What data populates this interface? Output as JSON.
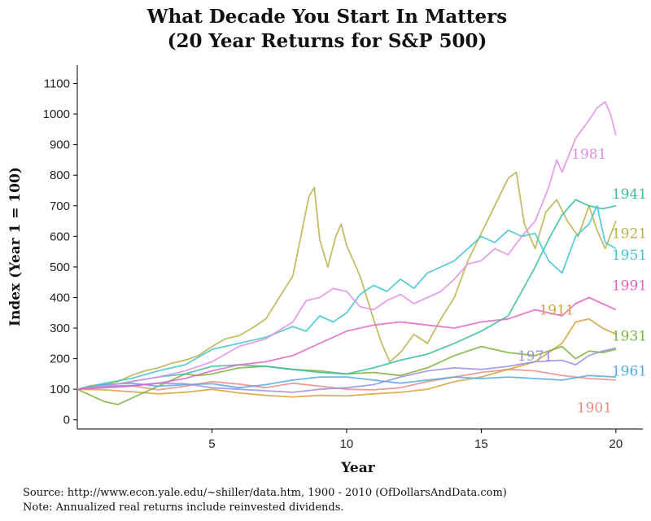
{
  "chart_data": {
    "type": "line",
    "title": "What Decade You Start In Matters",
    "subtitle": "(20 Year Returns for S&P 500)",
    "xlabel": "Year",
    "ylabel": "Index (Year 1 = 100)",
    "xlim": [
      0,
      21
    ],
    "ylim": [
      -30,
      1160
    ],
    "xticks": [
      5,
      10,
      15,
      20
    ],
    "yticks": [
      0,
      100,
      200,
      300,
      400,
      500,
      600,
      700,
      800,
      900,
      1000,
      1100
    ],
    "grid": false,
    "legend": "direct-labels",
    "series": [
      {
        "name": "1901",
        "color": "#e98c86",
        "label_at": [
          19.2,
          40
        ],
        "points": [
          [
            0,
            100
          ],
          [
            1,
            107
          ],
          [
            2,
            112
          ],
          [
            3,
            98
          ],
          [
            4,
            110
          ],
          [
            5,
            125
          ],
          [
            6,
            117
          ],
          [
            7,
            105
          ],
          [
            8,
            120
          ],
          [
            9,
            110
          ],
          [
            10,
            100
          ],
          [
            11,
            98
          ],
          [
            12,
            105
          ],
          [
            13,
            125
          ],
          [
            14,
            140
          ],
          [
            15,
            155
          ],
          [
            16,
            165
          ],
          [
            17,
            160
          ],
          [
            18,
            145
          ],
          [
            19,
            135
          ],
          [
            20,
            130
          ]
        ]
      },
      {
        "name": "1911",
        "color": "#d8a23c",
        "label_at": [
          17.8,
          360
        ],
        "points": [
          [
            0,
            100
          ],
          [
            1,
            98
          ],
          [
            2,
            92
          ],
          [
            3,
            85
          ],
          [
            4,
            90
          ],
          [
            5,
            100
          ],
          [
            6,
            88
          ],
          [
            7,
            80
          ],
          [
            8,
            75
          ],
          [
            9,
            80
          ],
          [
            10,
            78
          ],
          [
            11,
            85
          ],
          [
            12,
            90
          ],
          [
            13,
            100
          ],
          [
            14,
            125
          ],
          [
            15,
            140
          ],
          [
            16,
            165
          ],
          [
            17,
            190
          ],
          [
            18,
            250
          ],
          [
            18.5,
            320
          ],
          [
            19,
            330
          ],
          [
            19.5,
            300
          ],
          [
            20,
            280
          ]
        ]
      },
      {
        "name": "1921",
        "color": "#b9b24a",
        "label_at": [
          20.5,
          610
        ],
        "points": [
          [
            0,
            100
          ],
          [
            0.5,
            112
          ],
          [
            1,
            115
          ],
          [
            1.5,
            125
          ],
          [
            2,
            145
          ],
          [
            2.5,
            160
          ],
          [
            3,
            170
          ],
          [
            3.5,
            185
          ],
          [
            4,
            195
          ],
          [
            4.5,
            210
          ],
          [
            5,
            240
          ],
          [
            5.5,
            265
          ],
          [
            6,
            275
          ],
          [
            6.5,
            300
          ],
          [
            7,
            330
          ],
          [
            7.5,
            400
          ],
          [
            8,
            470
          ],
          [
            8.3,
            600
          ],
          [
            8.6,
            730
          ],
          [
            8.8,
            760
          ],
          [
            9,
            590
          ],
          [
            9.3,
            500
          ],
          [
            9.6,
            600
          ],
          [
            9.8,
            640
          ],
          [
            10,
            570
          ],
          [
            10.5,
            470
          ],
          [
            11,
            330
          ],
          [
            11.3,
            250
          ],
          [
            11.6,
            190
          ],
          [
            12,
            220
          ],
          [
            12.5,
            280
          ],
          [
            13,
            250
          ],
          [
            13.5,
            330
          ],
          [
            14,
            400
          ],
          [
            14.5,
            520
          ],
          [
            15,
            610
          ],
          [
            15.5,
            700
          ],
          [
            16,
            790
          ],
          [
            16.3,
            810
          ],
          [
            16.6,
            640
          ],
          [
            17,
            560
          ],
          [
            17.4,
            680
          ],
          [
            17.8,
            720
          ],
          [
            18.2,
            650
          ],
          [
            18.6,
            600
          ],
          [
            19,
            700
          ],
          [
            19.3,
            620
          ],
          [
            19.6,
            560
          ],
          [
            20,
            650
          ]
        ]
      },
      {
        "name": "1931",
        "color": "#7bb33a",
        "label_at": [
          20.5,
          275
        ],
        "points": [
          [
            0,
            100
          ],
          [
            0.5,
            80
          ],
          [
            1,
            60
          ],
          [
            1.5,
            50
          ],
          [
            2,
            70
          ],
          [
            2.5,
            90
          ],
          [
            3,
            110
          ],
          [
            3.5,
            130
          ],
          [
            4,
            150
          ],
          [
            4.5,
            145
          ],
          [
            5,
            150
          ],
          [
            6,
            170
          ],
          [
            7,
            175
          ],
          [
            8,
            165
          ],
          [
            9,
            160
          ],
          [
            10,
            150
          ],
          [
            11,
            155
          ],
          [
            12,
            145
          ],
          [
            13,
            170
          ],
          [
            14,
            210
          ],
          [
            15,
            240
          ],
          [
            16,
            220
          ],
          [
            17,
            210
          ],
          [
            18,
            240
          ],
          [
            18.5,
            200
          ],
          [
            19,
            225
          ],
          [
            19.5,
            220
          ],
          [
            20,
            230
          ]
        ]
      },
      {
        "name": "1941",
        "color": "#37c0a0",
        "label_at": [
          20.5,
          740
        ],
        "points": [
          [
            0,
            100
          ],
          [
            1,
            110
          ],
          [
            2,
            125
          ],
          [
            3,
            140
          ],
          [
            4,
            150
          ],
          [
            5,
            175
          ],
          [
            6,
            180
          ],
          [
            7,
            175
          ],
          [
            8,
            165
          ],
          [
            9,
            155
          ],
          [
            10,
            150
          ],
          [
            11,
            170
          ],
          [
            12,
            195
          ],
          [
            13,
            215
          ],
          [
            14,
            250
          ],
          [
            15,
            290
          ],
          [
            16,
            340
          ],
          [
            16.5,
            420
          ],
          [
            17,
            500
          ],
          [
            17.5,
            590
          ],
          [
            18,
            670
          ],
          [
            18.5,
            720
          ],
          [
            19,
            700
          ],
          [
            19.5,
            690
          ],
          [
            20,
            700
          ]
        ]
      },
      {
        "name": "1951",
        "color": "#3ec7cf",
        "label_at": [
          20.5,
          540
        ],
        "points": [
          [
            0,
            100
          ],
          [
            1,
            120
          ],
          [
            2,
            135
          ],
          [
            3,
            160
          ],
          [
            4,
            180
          ],
          [
            5,
            230
          ],
          [
            6,
            250
          ],
          [
            7,
            270
          ],
          [
            8,
            305
          ],
          [
            8.5,
            290
          ],
          [
            9,
            340
          ],
          [
            9.5,
            320
          ],
          [
            10,
            350
          ],
          [
            10.5,
            410
          ],
          [
            11,
            440
          ],
          [
            11.5,
            420
          ],
          [
            12,
            460
          ],
          [
            12.5,
            430
          ],
          [
            13,
            480
          ],
          [
            13.5,
            500
          ],
          [
            14,
            520
          ],
          [
            14.5,
            560
          ],
          [
            15,
            600
          ],
          [
            15.5,
            580
          ],
          [
            16,
            620
          ],
          [
            16.5,
            600
          ],
          [
            17,
            610
          ],
          [
            17.5,
            520
          ],
          [
            18,
            480
          ],
          [
            18.5,
            600
          ],
          [
            19,
            640
          ],
          [
            19.3,
            700
          ],
          [
            19.6,
            580
          ],
          [
            20,
            560
          ]
        ]
      },
      {
        "name": "1961",
        "color": "#52a9e0",
        "label_at": [
          20.5,
          160
        ],
        "points": [
          [
            0,
            100
          ],
          [
            1,
            115
          ],
          [
            2,
            120
          ],
          [
            3,
            110
          ],
          [
            4,
            115
          ],
          [
            5,
            118
          ],
          [
            6,
            105
          ],
          [
            7,
            115
          ],
          [
            8,
            130
          ],
          [
            9,
            140
          ],
          [
            10,
            140
          ],
          [
            11,
            130
          ],
          [
            12,
            120
          ],
          [
            13,
            130
          ],
          [
            14,
            140
          ],
          [
            15,
            135
          ],
          [
            16,
            140
          ],
          [
            17,
            135
          ],
          [
            18,
            130
          ],
          [
            19,
            145
          ],
          [
            20,
            140
          ]
        ]
      },
      {
        "name": "1971",
        "color": "#9a8fe0",
        "label_at": [
          17.0,
          210
        ],
        "points": [
          [
            0,
            100
          ],
          [
            1,
            110
          ],
          [
            2,
            112
          ],
          [
            3,
            120
          ],
          [
            4,
            118
          ],
          [
            5,
            105
          ],
          [
            6,
            100
          ],
          [
            7,
            95
          ],
          [
            8,
            90
          ],
          [
            9,
            100
          ],
          [
            10,
            105
          ],
          [
            11,
            115
          ],
          [
            12,
            140
          ],
          [
            13,
            160
          ],
          [
            14,
            170
          ],
          [
            15,
            165
          ],
          [
            16,
            175
          ],
          [
            17,
            190
          ],
          [
            18,
            195
          ],
          [
            18.5,
            180
          ],
          [
            19,
            210
          ],
          [
            19.5,
            225
          ],
          [
            20,
            235
          ]
        ]
      },
      {
        "name": "1981",
        "color": "#e18fe6",
        "label_at": [
          19.0,
          870
        ],
        "points": [
          [
            0,
            100
          ],
          [
            1,
            110
          ],
          [
            2,
            125
          ],
          [
            3,
            140
          ],
          [
            4,
            160
          ],
          [
            5,
            190
          ],
          [
            6,
            240
          ],
          [
            7,
            265
          ],
          [
            8,
            320
          ],
          [
            8.5,
            390
          ],
          [
            9,
            400
          ],
          [
            9.5,
            430
          ],
          [
            10,
            420
          ],
          [
            10.5,
            370
          ],
          [
            11,
            360
          ],
          [
            11.5,
            390
          ],
          [
            12,
            410
          ],
          [
            12.5,
            380
          ],
          [
            13,
            400
          ],
          [
            13.5,
            420
          ],
          [
            14,
            460
          ],
          [
            14.5,
            510
          ],
          [
            15,
            520
          ],
          [
            15.5,
            560
          ],
          [
            16,
            540
          ],
          [
            16.5,
            600
          ],
          [
            17,
            650
          ],
          [
            17.5,
            760
          ],
          [
            17.8,
            850
          ],
          [
            18,
            810
          ],
          [
            18.5,
            920
          ],
          [
            19,
            980
          ],
          [
            19.3,
            1020
          ],
          [
            19.6,
            1040
          ],
          [
            19.8,
            1000
          ],
          [
            20,
            930
          ]
        ]
      },
      {
        "name": "1991",
        "color": "#e066c4",
        "label_at": [
          20.5,
          440
        ],
        "points": [
          [
            0,
            100
          ],
          [
            1,
            105
          ],
          [
            2,
            110
          ],
          [
            3,
            120
          ],
          [
            4,
            135
          ],
          [
            5,
            160
          ],
          [
            6,
            180
          ],
          [
            7,
            190
          ],
          [
            8,
            210
          ],
          [
            9,
            250
          ],
          [
            10,
            290
          ],
          [
            11,
            310
          ],
          [
            12,
            320
          ],
          [
            13,
            310
          ],
          [
            14,
            300
          ],
          [
            15,
            320
          ],
          [
            16,
            330
          ],
          [
            17,
            360
          ],
          [
            18,
            340
          ],
          [
            18.5,
            380
          ],
          [
            19,
            400
          ],
          [
            19.5,
            380
          ],
          [
            20,
            360
          ]
        ]
      }
    ],
    "source": "Source:  http://www.econ.yale.edu/~shiller/data.htm, 1900 - 2010 (OfDollarsAndData.com)",
    "note": "Note:  Annualized real returns include reinvested dividends."
  }
}
